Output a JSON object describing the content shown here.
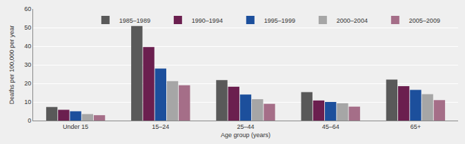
{
  "chart_data": {
    "type": "bar",
    "x_label": "Age group (years)",
    "y_label": "Deaths per 100,000 per year",
    "categories": [
      "Under 15",
      "15–24",
      "25–44",
      "45–64",
      "65+"
    ],
    "series": [
      {
        "name": "1985–1989",
        "color": "#595959",
        "values": [
          7.3,
          50.8,
          21.8,
          15.3,
          22.0
        ]
      },
      {
        "name": "1990–1994",
        "color": "#6b1f4f",
        "values": [
          5.8,
          39.5,
          18.2,
          10.8,
          18.5
        ]
      },
      {
        "name": "1995–1999",
        "color": "#1c4f9c",
        "values": [
          5.0,
          28.0,
          14.0,
          10.0,
          16.5
        ]
      },
      {
        "name": "2000–2004",
        "color": "#a6a6a6",
        "values": [
          3.5,
          21.2,
          11.5,
          9.3,
          14.2
        ]
      },
      {
        "name": "2005–2009",
        "color": "#a56e88",
        "values": [
          2.9,
          19.0,
          9.0,
          7.5,
          11.0
        ]
      }
    ],
    "ylim": [
      0,
      60
    ],
    "yticks": [
      0,
      10,
      20,
      30,
      40,
      50,
      60
    ],
    "grid": true,
    "legend": "top right"
  }
}
